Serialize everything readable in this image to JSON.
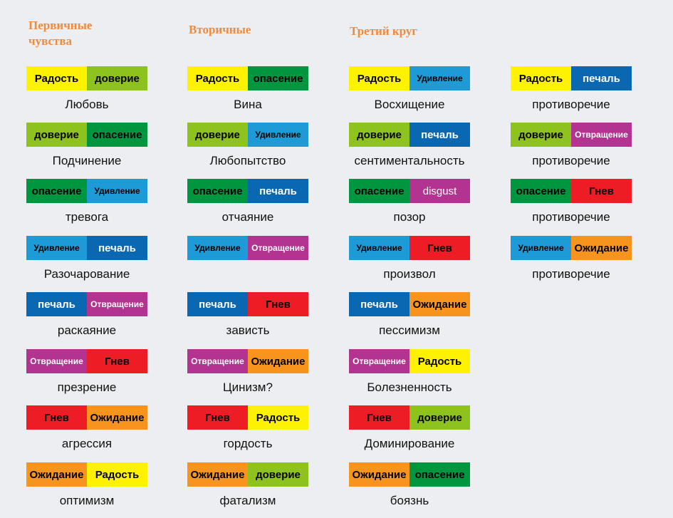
{
  "colors": {
    "Радость": {
      "bg": "#fff200",
      "fg": "#000000"
    },
    "доверие": {
      "bg": "#8dc21f",
      "fg": "#000000"
    },
    "опасение": {
      "bg": "#00963f",
      "fg": "#000000"
    },
    "Удивление": {
      "bg": "#1e9ad6",
      "fg": "#000000",
      "small": true
    },
    "печаль": {
      "bg": "#0a67b2",
      "fg": "#ffffff"
    },
    "Отвращение": {
      "bg": "#b23390",
      "fg": "#ffffff",
      "small": true
    },
    "disgust": {
      "bg": "#b23390",
      "fg": "#ffffff",
      "regular": true
    },
    "Гнев": {
      "bg": "#ee1c25",
      "fg": "#000000"
    },
    "Ожидание": {
      "bg": "#f7941d",
      "fg": "#000000"
    }
  },
  "columns": [
    {
      "id": "primary",
      "header": "Первичные чувства",
      "pairs": [
        {
          "left": "Радость",
          "right": "доверие",
          "result": "Любовь"
        },
        {
          "left": "доверие",
          "right": "опасение",
          "result": "Подчинение"
        },
        {
          "left": "опасение",
          "right": "Удивление",
          "result": "тревога"
        },
        {
          "left": "Удивление",
          "right": "печаль",
          "result": "Разочарование"
        },
        {
          "left": "печаль",
          "right": "Отвращение",
          "result": "раскаяние"
        },
        {
          "left": "Отвращение",
          "right": "Гнев",
          "result": "презрение"
        },
        {
          "left": "Гнев",
          "right": "Ожидание",
          "result": "агрессия"
        },
        {
          "left": "Ожидание",
          "right": "Радость",
          "result": "оптимизм"
        }
      ]
    },
    {
      "id": "secondary",
      "header": "Вторичные",
      "pairs": [
        {
          "left": "Радость",
          "right": "опасение",
          "result": "Вина"
        },
        {
          "left": "доверие",
          "right": "Удивление",
          "result": "Любопытство"
        },
        {
          "left": "опасение",
          "right": "печаль",
          "result": "отчаяние"
        },
        {
          "left": "Удивление",
          "right": "Отвращение",
          "result": ""
        },
        {
          "left": "печаль",
          "right": "Гнев",
          "result": "зависть"
        },
        {
          "left": "Отвращение",
          "right": "Ожидание",
          "result": "Цинизм?"
        },
        {
          "left": "Гнев",
          "right": "Радость",
          "result": "гордость"
        },
        {
          "left": "Ожидание",
          "right": "доверие",
          "result": "фатализм"
        }
      ]
    },
    {
      "id": "third",
      "header": "Третий круг",
      "pairs": [
        {
          "left": "Радость",
          "right": "Удивление",
          "result": "Восхищение"
        },
        {
          "left": "доверие",
          "right": "печаль",
          "result": "сентиментальность"
        },
        {
          "left": "опасение",
          "right": "disgust",
          "result": "позор"
        },
        {
          "left": "Удивление",
          "right": "Гнев",
          "result": "произвол"
        },
        {
          "left": "печаль",
          "right": "Ожидание",
          "result": "пессимизм"
        },
        {
          "left": "Отвращение",
          "right": "Радость",
          "result": "Болезненность"
        },
        {
          "left": "Гнев",
          "right": "доверие",
          "result": "Доминирование"
        },
        {
          "left": "Ожидание",
          "right": "опасение",
          "result": "боязнь"
        }
      ]
    },
    {
      "id": "fourth",
      "header": "",
      "pairs": [
        {
          "left": "Радость",
          "right": "печаль",
          "result": "противоречие"
        },
        {
          "left": "доверие",
          "right": "Отвращение",
          "result": "противоречие"
        },
        {
          "left": "опасение",
          "right": "Гнев",
          "result": "противоречие"
        },
        {
          "left": "Удивление",
          "right": "Ожидание",
          "result": "противоречие"
        }
      ]
    }
  ]
}
